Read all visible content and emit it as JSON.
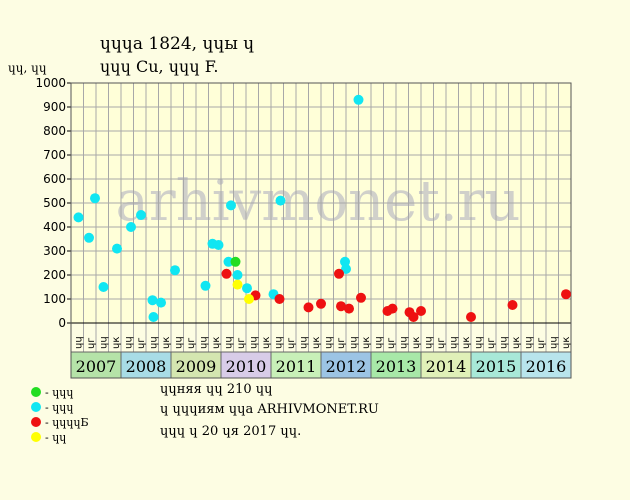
{
  "title": {
    "line1": "ɥɥɥа 1824, ɥɥы ɥ",
    "line2": "ɥɥɥ Cu, ɥɥɥ F."
  },
  "info": [
    "ɥɥняя ɥɥ 210 ɥɥ",
    "ɥ ɥɥɥиям ɥɥа ARHIVMONET.RU",
    "ɥɥɥ ɥ 20 ɥя 2017 ɥɥ."
  ],
  "watermark": "arhivmonet.ru",
  "colors": {
    "background": "#fdfde3",
    "plot_background": "#ffffd8",
    "green": "#22dd22",
    "cyan": "#11e6f2",
    "red": "#ee1111",
    "yellow": "#ffff00"
  },
  "chart_data": {
    "type": "scatter",
    "ylabel": "ɥɥ, ɥɥ",
    "ylim": [
      0,
      1000
    ],
    "yticks": [
      0,
      100,
      200,
      300,
      400,
      500,
      600,
      700,
      800,
      900,
      1000
    ],
    "grid": true,
    "quarter_labels": [
      "ɥɥ",
      "ɥг",
      "ɥɥ",
      "ɥк"
    ],
    "years": [
      {
        "label": "2007",
        "color": "#b5e3a8"
      },
      {
        "label": "2008",
        "color": "#a8dce6"
      },
      {
        "label": "2009",
        "color": "#d4e6b0"
      },
      {
        "label": "2010",
        "color": "#d8cce8"
      },
      {
        "label": "2011",
        "color": "#c8f0b8"
      },
      {
        "label": "2012",
        "color": "#9cc4e4"
      },
      {
        "label": "2013",
        "color": "#a8e8a8"
      },
      {
        "label": "2014",
        "color": "#e0f0b8"
      },
      {
        "label": "2015",
        "color": "#a8e8d8"
      },
      {
        "label": "2016",
        "color": "#b8e4ec"
      }
    ],
    "legend": [
      {
        "label": "- ɥɥɥ",
        "color": "#22dd22"
      },
      {
        "label": "- ɥɥɥ",
        "color": "#11e6f2"
      },
      {
        "label": "- ɥɥɥɥБ",
        "color": "#ee1111"
      },
      {
        "label": "- ɥɥ",
        "color": "#ffff00"
      }
    ],
    "series": [
      {
        "color": "#11e6f2",
        "points": [
          {
            "x": 2007.15,
            "y": 440
          },
          {
            "x": 2007.36,
            "y": 355
          },
          {
            "x": 2007.48,
            "y": 520
          },
          {
            "x": 2007.65,
            "y": 150
          },
          {
            "x": 2007.92,
            "y": 310
          },
          {
            "x": 2008.2,
            "y": 400
          },
          {
            "x": 2008.4,
            "y": 450
          },
          {
            "x": 2008.63,
            "y": 95
          },
          {
            "x": 2008.65,
            "y": 25
          },
          {
            "x": 2008.8,
            "y": 85
          },
          {
            "x": 2009.08,
            "y": 220
          },
          {
            "x": 2009.69,
            "y": 155
          },
          {
            "x": 2009.83,
            "y": 330
          },
          {
            "x": 2009.95,
            "y": 325
          },
          {
            "x": 2010.15,
            "y": 255
          },
          {
            "x": 2010.2,
            "y": 490
          },
          {
            "x": 2010.33,
            "y": 200
          },
          {
            "x": 2010.52,
            "y": 145
          },
          {
            "x": 2011.05,
            "y": 120
          },
          {
            "x": 2011.19,
            "y": 510
          },
          {
            "x": 2012.5,
            "y": 225
          },
          {
            "x": 2012.48,
            "y": 255
          },
          {
            "x": 2012.75,
            "y": 930
          }
        ]
      },
      {
        "color": "#22dd22",
        "points": [
          {
            "x": 2010.29,
            "y": 255
          }
        ]
      },
      {
        "color": "#ee1111",
        "points": [
          {
            "x": 2010.11,
            "y": 205
          },
          {
            "x": 2010.69,
            "y": 115
          },
          {
            "x": 2011.17,
            "y": 100
          },
          {
            "x": 2011.75,
            "y": 65
          },
          {
            "x": 2012.0,
            "y": 80
          },
          {
            "x": 2012.36,
            "y": 205
          },
          {
            "x": 2012.4,
            "y": 70
          },
          {
            "x": 2012.56,
            "y": 60
          },
          {
            "x": 2012.8,
            "y": 105
          },
          {
            "x": 2013.33,
            "y": 50
          },
          {
            "x": 2013.43,
            "y": 60
          },
          {
            "x": 2013.77,
            "y": 45
          },
          {
            "x": 2013.85,
            "y": 25
          },
          {
            "x": 2014.0,
            "y": 50
          },
          {
            "x": 2015.0,
            "y": 25
          },
          {
            "x": 2015.83,
            "y": 75
          },
          {
            "x": 2016.9,
            "y": 120
          }
        ]
      },
      {
        "color": "#ffff00",
        "points": [
          {
            "x": 2010.33,
            "y": 160
          },
          {
            "x": 2010.56,
            "y": 100
          }
        ]
      }
    ]
  }
}
